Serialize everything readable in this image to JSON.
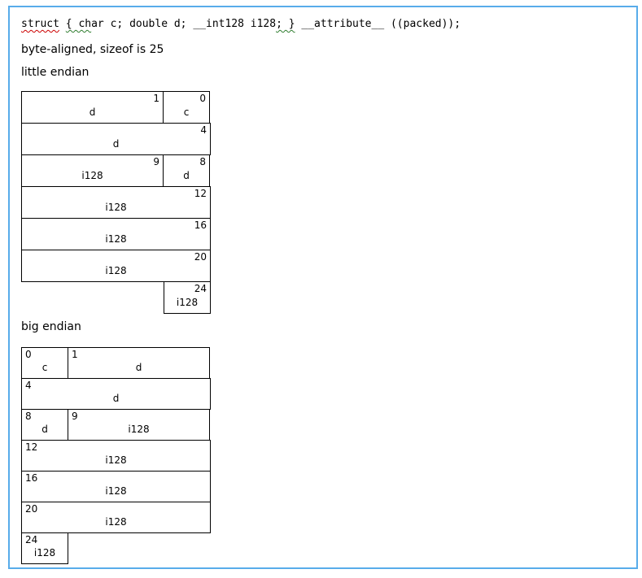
{
  "code": {
    "full_text": "struct { char c; double d; __int128 i128; } __attribute__ ((packed));",
    "segments": [
      {
        "text": "struct",
        "underline": "red"
      },
      {
        "text": " ",
        "underline": "none"
      },
      {
        "text": "{ ch",
        "underline": "green"
      },
      {
        "text": "ar c; double d; __int128 i128",
        "underline": "none"
      },
      {
        "text": "; }",
        "underline": "green"
      },
      {
        "text": " __attribute__ ((packed));",
        "underline": "none"
      }
    ]
  },
  "info_line": "byte-aligned, sizeof is 25",
  "diagrams": {
    "little_endian": {
      "title": "little endian",
      "num_side": "right",
      "bytes_per_row": 4,
      "rows": [
        {
          "cells": [
            {
              "bytes": 3,
              "num": "1",
              "label": "d"
            },
            {
              "bytes": 1,
              "num": "0",
              "label": "c"
            }
          ]
        },
        {
          "cells": [
            {
              "bytes": 4,
              "num": "4",
              "label": "d"
            }
          ]
        },
        {
          "cells": [
            {
              "bytes": 3,
              "num": "9",
              "label": "i128"
            },
            {
              "bytes": 1,
              "num": "8",
              "label": "d"
            }
          ]
        },
        {
          "cells": [
            {
              "bytes": 4,
              "num": "12",
              "label": "i128"
            }
          ]
        },
        {
          "cells": [
            {
              "bytes": 4,
              "num": "16",
              "label": "i128"
            }
          ]
        },
        {
          "cells": [
            {
              "bytes": 4,
              "num": "20",
              "label": "i128"
            }
          ]
        },
        {
          "cells": [
            {
              "bytes": 3,
              "empty": true
            },
            {
              "bytes": 1,
              "num": "24",
              "label": "i128"
            }
          ]
        }
      ]
    },
    "big_endian": {
      "title": "big endian",
      "num_side": "left",
      "bytes_per_row": 4,
      "rows": [
        {
          "cells": [
            {
              "bytes": 1,
              "num": "0",
              "label": "c"
            },
            {
              "bytes": 3,
              "num": "1",
              "label": "d"
            }
          ]
        },
        {
          "cells": [
            {
              "bytes": 4,
              "num": "4",
              "label": "d"
            }
          ]
        },
        {
          "cells": [
            {
              "bytes": 1,
              "num": "8",
              "label": "d"
            },
            {
              "bytes": 3,
              "num": "9",
              "label": "i128"
            }
          ]
        },
        {
          "cells": [
            {
              "bytes": 4,
              "num": "12",
              "label": "i128"
            }
          ]
        },
        {
          "cells": [
            {
              "bytes": 4,
              "num": "16",
              "label": "i128"
            }
          ]
        },
        {
          "cells": [
            {
              "bytes": 4,
              "num": "20",
              "label": "i128"
            }
          ]
        },
        {
          "cells": [
            {
              "bytes": 1,
              "num": "24",
              "label": "i128"
            },
            {
              "bytes": 3,
              "empty": true
            }
          ]
        }
      ]
    }
  },
  "colors": {
    "frame_border": "#58acea",
    "cell_border": "#000000",
    "squiggle_red": "#cc0000",
    "squiggle_green": "#2f7d2f",
    "text": "#000000",
    "background": "#ffffff"
  }
}
